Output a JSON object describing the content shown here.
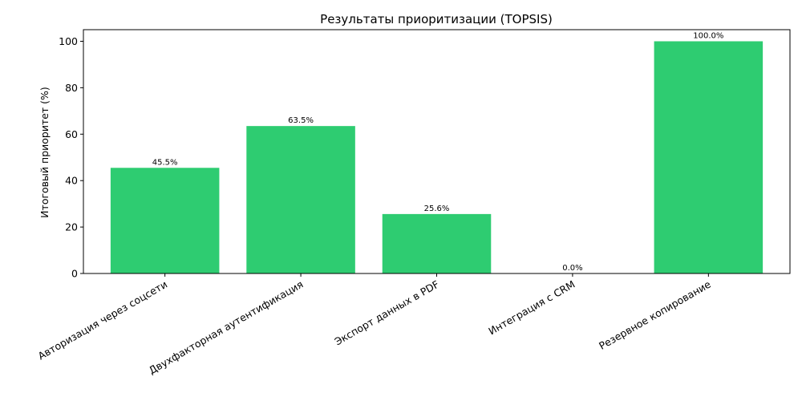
{
  "chart_data": {
    "type": "bar",
    "title": "Результаты приоритизации (TOPSIS)",
    "xlabel": "",
    "ylabel": "Итоговый приоритет (%)",
    "ylim": [
      0,
      105
    ],
    "yticks": [
      0,
      20,
      40,
      60,
      80,
      100
    ],
    "categories": [
      "Авторизация через соцсети",
      "Двухфакторная аутентификация",
      "Экспорт данных в PDF",
      "Интеграция с CRM",
      "Резервное копирование"
    ],
    "values": [
      45.5,
      63.5,
      25.6,
      0.0,
      100.0
    ],
    "data_labels": [
      "45.5%",
      "63.5%",
      "25.6%",
      "0.0%",
      "100.0%"
    ],
    "bar_color": "#2ecc71",
    "grid": false,
    "legend": "none"
  }
}
